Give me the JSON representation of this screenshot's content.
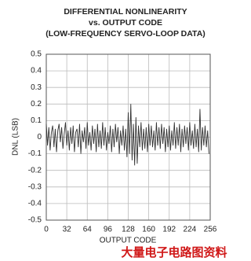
{
  "chart_data": {
    "type": "line",
    "title": [
      "DIFFERENTIAL NONLINEARITY",
      "vs. OUTPUT CODE",
      "(LOW-FREQUENCY SERVO-LOOP DATA)"
    ],
    "xlabel": "OUTPUT CODE",
    "ylabel": "DNL (LSB)",
    "watermark": "大量电子电路图资料",
    "color": "#333333",
    "grid": true,
    "xlim": [
      0,
      256
    ],
    "ylim": [
      -0.5,
      0.5
    ],
    "xticks": [
      0,
      32,
      64,
      96,
      128,
      160,
      192,
      224,
      256
    ],
    "yticks": [
      0.5,
      0.4,
      0.3,
      0.2,
      0.1,
      0,
      -0.1,
      -0.2,
      -0.3,
      -0.4,
      -0.5
    ],
    "x": [
      0,
      2,
      4,
      6,
      8,
      10,
      12,
      14,
      16,
      18,
      20,
      22,
      24,
      26,
      28,
      30,
      32,
      34,
      36,
      38,
      40,
      42,
      44,
      46,
      48,
      50,
      52,
      54,
      56,
      58,
      60,
      62,
      64,
      66,
      68,
      70,
      72,
      74,
      76,
      78,
      80,
      82,
      84,
      86,
      88,
      90,
      92,
      94,
      96,
      98,
      100,
      102,
      104,
      106,
      108,
      110,
      112,
      114,
      116,
      118,
      120,
      122,
      124,
      126,
      128,
      130,
      132,
      134,
      136,
      138,
      140,
      142,
      144,
      146,
      148,
      150,
      152,
      154,
      156,
      158,
      160,
      162,
      164,
      166,
      168,
      170,
      172,
      174,
      176,
      178,
      180,
      182,
      184,
      186,
      188,
      190,
      192,
      194,
      196,
      198,
      200,
      202,
      204,
      206,
      208,
      210,
      212,
      214,
      216,
      218,
      220,
      222,
      224,
      226,
      228,
      230,
      232,
      234,
      236,
      238,
      240,
      242,
      244,
      246,
      248,
      250,
      252,
      254
    ],
    "values": [
      0.08,
      -0.05,
      0.06,
      -0.08,
      0.03,
      0.07,
      -0.06,
      0.05,
      -0.09,
      0.04,
      0.08,
      -0.03,
      0.06,
      -0.07,
      0.02,
      0.09,
      -0.05,
      0.04,
      -0.08,
      0.06,
      -0.04,
      0.07,
      -0.09,
      0.03,
      0.05,
      -0.06,
      0.08,
      -0.1,
      0.04,
      -0.03,
      0.06,
      -0.07,
      0.09,
      -0.05,
      0.03,
      -0.08,
      0.07,
      -0.04,
      0.05,
      -0.09,
      0.08,
      -0.06,
      0.04,
      -0.07,
      0.09,
      -0.05,
      0.06,
      -0.08,
      0.03,
      -0.04,
      0.07,
      -0.09,
      0.05,
      -0.06,
      0.08,
      -0.03,
      0.06,
      -0.1,
      0.04,
      -0.05,
      0.07,
      -0.08,
      0.05,
      -0.12,
      0.15,
      -0.1,
      0.2,
      -0.14,
      0.08,
      -0.17,
      0.12,
      -0.16,
      0.07,
      -0.06,
      0.09,
      -0.08,
      0.05,
      -0.07,
      0.06,
      -0.09,
      0.08,
      -0.05,
      0.07,
      -0.06,
      0.04,
      -0.08,
      0.09,
      -0.05,
      0.06,
      -0.07,
      0.08,
      -0.04,
      0.06,
      -0.09,
      0.05,
      -0.06,
      0.07,
      -0.08,
      0.04,
      -0.05,
      0.09,
      -0.07,
      0.06,
      -0.05,
      0.08,
      -0.09,
      0.05,
      -0.06,
      0.07,
      -0.04,
      0.06,
      -0.08,
      0.09,
      -0.05,
      0.04,
      -0.07,
      0.08,
      -0.06,
      0.05,
      -0.09,
      0.17,
      -0.08,
      0.06,
      -0.05,
      0.07,
      -0.06,
      0.04,
      -0.1
    ]
  }
}
